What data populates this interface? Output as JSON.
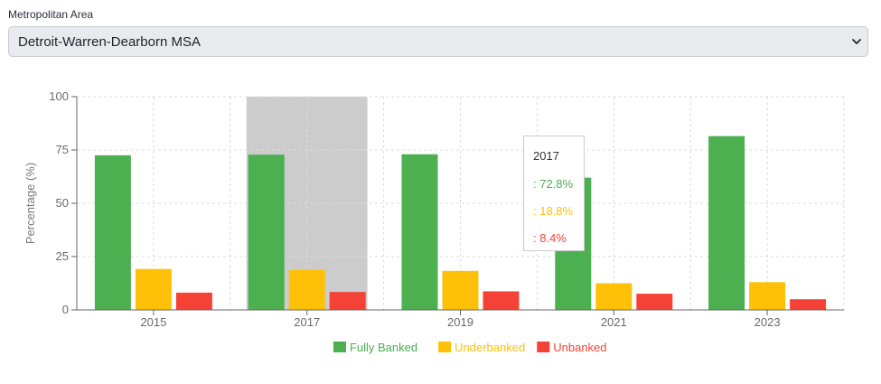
{
  "filter": {
    "label": "Metropolitan Area",
    "selected": "Detroit-Warren-Dearborn MSA"
  },
  "icons": {
    "dropdown": "chevron-down-icon"
  },
  "chart_data": {
    "type": "bar",
    "ylabel": "Percentage (%)",
    "xlabel": "",
    "ylim": [
      0,
      100
    ],
    "yticks": [
      0,
      25,
      50,
      75,
      100
    ],
    "grid": true,
    "legend_position": "bottom",
    "categories": [
      "2015",
      "2017",
      "2019",
      "2021",
      "2023"
    ],
    "series": [
      {
        "name": "Fully Banked",
        "color": "#4caf50",
        "values": [
          72.5,
          72.8,
          73.0,
          62.0,
          81.5
        ]
      },
      {
        "name": "Underbanked",
        "color": "#ffc107",
        "values": [
          19.2,
          18.8,
          18.3,
          12.5,
          13.0
        ]
      },
      {
        "name": "Unbanked",
        "color": "#f44336",
        "values": [
          8.1,
          8.4,
          8.7,
          7.6,
          5.0
        ]
      }
    ],
    "highlighted_category": "2017",
    "highlight_color": "#cccccc"
  },
  "tooltip": {
    "title": "2017",
    "rows": [
      {
        "text": ": 72.8%",
        "color": "#4caf50"
      },
      {
        "text": ": 18.8%",
        "color": "#ffc107"
      },
      {
        "text": ": 8.4%",
        "color": "#f44336"
      }
    ]
  }
}
